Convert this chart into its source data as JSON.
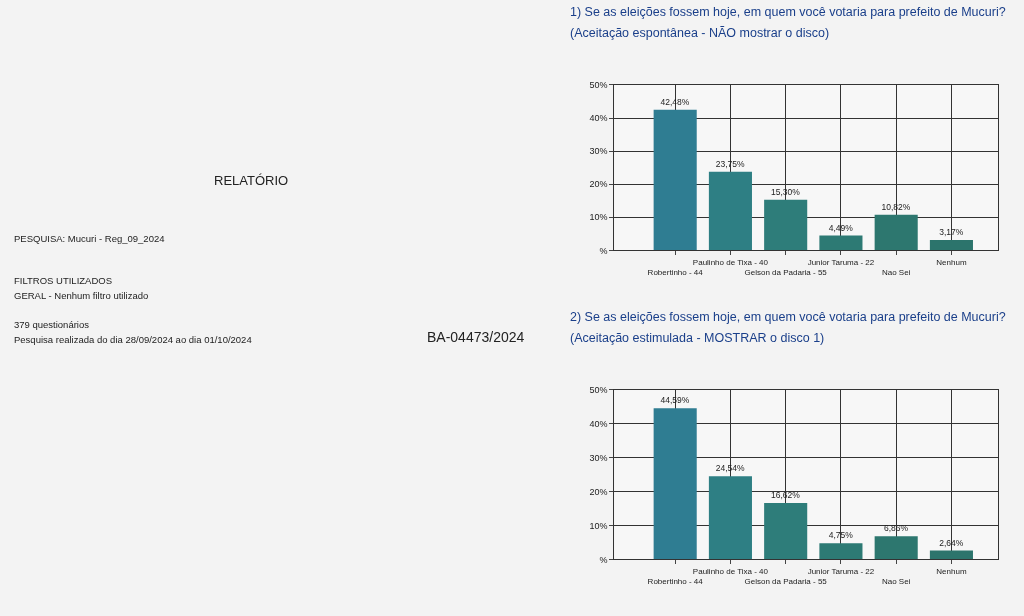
{
  "chart_data": [
    {
      "type": "other",
      "annotations": [
        "RELATÓRIO",
        "PESQUISA: Mucuri - Reg_09_2024",
        "FILTROS UTILIZADOS",
        "GERAL - Nenhum filtro utilizado",
        "379 questionários",
        "Pesquisa realizada do dia 28/09/2024 ao dia 01/10/2024",
        "BA-04473/2024"
      ]
    },
    {
      "type": "bar",
      "title": "1) Se as eleições fossem hoje, em quem você votaria para prefeito de Mucuri?",
      "subtitle": "(Aceitação espontânea - NÃO mostrar o disco)",
      "categories": [
        "Robertinho - 44",
        "Paulinho de Tixa - 40",
        "Gelson da Padaria - 55",
        "Junior Taruma - 22",
        "Nao Sei",
        "Nenhum"
      ],
      "values": [
        42.48,
        23.75,
        15.3,
        4.49,
        10.82,
        3.17
      ],
      "value_labels": [
        "42,48%",
        "23,75%",
        "15,30%",
        "4,49%",
        "10,82%",
        "3,17%"
      ],
      "colors": [
        "#2f7d92",
        "#2e7f84",
        "#2e7d7a",
        "#2d7a74",
        "#2d776f",
        "#2c746c"
      ],
      "ylim": [
        0,
        50
      ],
      "yticks": [
        {
          "value": 0,
          "label": "%"
        },
        {
          "value": 10,
          "label": "10%"
        },
        {
          "value": 20,
          "label": "20%"
        },
        {
          "value": 30,
          "label": "30%"
        },
        {
          "value": 40,
          "label": "40%"
        },
        {
          "value": 50,
          "label": "50%"
        }
      ],
      "grid": true
    },
    {
      "type": "bar",
      "title": "2) Se as eleições fossem hoje, em quem você votaria para prefeito de Mucuri?",
      "subtitle": "(Aceitação estimulada - MOSTRAR o disco 1)",
      "categories": [
        "Robertinho - 44",
        "Paulinho de Tixa - 40",
        "Gelson da Padaria - 55",
        "Junior Taruma - 22",
        "Nao Sei",
        "Nenhum"
      ],
      "values": [
        44.59,
        24.54,
        16.62,
        4.75,
        6.86,
        2.64
      ],
      "value_labels": [
        "44,59%",
        "24,54%",
        "16,62%",
        "4,75%",
        "6,86%",
        "2,64%"
      ],
      "colors": [
        "#2f7d92",
        "#2e7f84",
        "#2e7d7a",
        "#2d7a74",
        "#2d776f",
        "#2c746c"
      ],
      "ylim": [
        0,
        50
      ],
      "yticks": [
        {
          "value": 0,
          "label": "%"
        },
        {
          "value": 10,
          "label": "10%"
        },
        {
          "value": 20,
          "label": "20%"
        },
        {
          "value": 30,
          "label": "30%"
        },
        {
          "value": 40,
          "label": "40%"
        },
        {
          "value": 50,
          "label": "50%"
        }
      ],
      "grid": true
    }
  ]
}
